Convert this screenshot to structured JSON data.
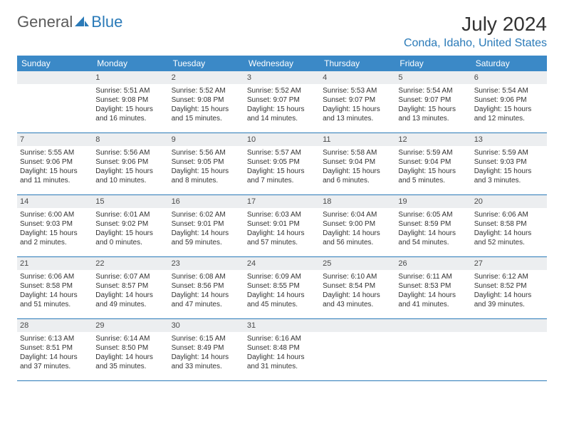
{
  "logo": {
    "text1": "General",
    "text2": "Blue"
  },
  "header": {
    "month_year": "July 2024",
    "location": "Conda, Idaho, United States"
  },
  "colors": {
    "header_bg": "#3b89c7",
    "accent": "#2a7ab8",
    "daynum_bg": "#eceef0",
    "text": "#333333",
    "logo_gray": "#5a5a5a"
  },
  "day_headers": [
    "Sunday",
    "Monday",
    "Tuesday",
    "Wednesday",
    "Thursday",
    "Friday",
    "Saturday"
  ],
  "weeks": [
    [
      {
        "n": "",
        "sr": "",
        "ss": "",
        "dl": ""
      },
      {
        "n": "1",
        "sr": "Sunrise: 5:51 AM",
        "ss": "Sunset: 9:08 PM",
        "dl": "Daylight: 15 hours and 16 minutes."
      },
      {
        "n": "2",
        "sr": "Sunrise: 5:52 AM",
        "ss": "Sunset: 9:08 PM",
        "dl": "Daylight: 15 hours and 15 minutes."
      },
      {
        "n": "3",
        "sr": "Sunrise: 5:52 AM",
        "ss": "Sunset: 9:07 PM",
        "dl": "Daylight: 15 hours and 14 minutes."
      },
      {
        "n": "4",
        "sr": "Sunrise: 5:53 AM",
        "ss": "Sunset: 9:07 PM",
        "dl": "Daylight: 15 hours and 13 minutes."
      },
      {
        "n": "5",
        "sr": "Sunrise: 5:54 AM",
        "ss": "Sunset: 9:07 PM",
        "dl": "Daylight: 15 hours and 13 minutes."
      },
      {
        "n": "6",
        "sr": "Sunrise: 5:54 AM",
        "ss": "Sunset: 9:06 PM",
        "dl": "Daylight: 15 hours and 12 minutes."
      }
    ],
    [
      {
        "n": "7",
        "sr": "Sunrise: 5:55 AM",
        "ss": "Sunset: 9:06 PM",
        "dl": "Daylight: 15 hours and 11 minutes."
      },
      {
        "n": "8",
        "sr": "Sunrise: 5:56 AM",
        "ss": "Sunset: 9:06 PM",
        "dl": "Daylight: 15 hours and 10 minutes."
      },
      {
        "n": "9",
        "sr": "Sunrise: 5:56 AM",
        "ss": "Sunset: 9:05 PM",
        "dl": "Daylight: 15 hours and 8 minutes."
      },
      {
        "n": "10",
        "sr": "Sunrise: 5:57 AM",
        "ss": "Sunset: 9:05 PM",
        "dl": "Daylight: 15 hours and 7 minutes."
      },
      {
        "n": "11",
        "sr": "Sunrise: 5:58 AM",
        "ss": "Sunset: 9:04 PM",
        "dl": "Daylight: 15 hours and 6 minutes."
      },
      {
        "n": "12",
        "sr": "Sunrise: 5:59 AM",
        "ss": "Sunset: 9:04 PM",
        "dl": "Daylight: 15 hours and 5 minutes."
      },
      {
        "n": "13",
        "sr": "Sunrise: 5:59 AM",
        "ss": "Sunset: 9:03 PM",
        "dl": "Daylight: 15 hours and 3 minutes."
      }
    ],
    [
      {
        "n": "14",
        "sr": "Sunrise: 6:00 AM",
        "ss": "Sunset: 9:03 PM",
        "dl": "Daylight: 15 hours and 2 minutes."
      },
      {
        "n": "15",
        "sr": "Sunrise: 6:01 AM",
        "ss": "Sunset: 9:02 PM",
        "dl": "Daylight: 15 hours and 0 minutes."
      },
      {
        "n": "16",
        "sr": "Sunrise: 6:02 AM",
        "ss": "Sunset: 9:01 PM",
        "dl": "Daylight: 14 hours and 59 minutes."
      },
      {
        "n": "17",
        "sr": "Sunrise: 6:03 AM",
        "ss": "Sunset: 9:01 PM",
        "dl": "Daylight: 14 hours and 57 minutes."
      },
      {
        "n": "18",
        "sr": "Sunrise: 6:04 AM",
        "ss": "Sunset: 9:00 PM",
        "dl": "Daylight: 14 hours and 56 minutes."
      },
      {
        "n": "19",
        "sr": "Sunrise: 6:05 AM",
        "ss": "Sunset: 8:59 PM",
        "dl": "Daylight: 14 hours and 54 minutes."
      },
      {
        "n": "20",
        "sr": "Sunrise: 6:06 AM",
        "ss": "Sunset: 8:58 PM",
        "dl": "Daylight: 14 hours and 52 minutes."
      }
    ],
    [
      {
        "n": "21",
        "sr": "Sunrise: 6:06 AM",
        "ss": "Sunset: 8:58 PM",
        "dl": "Daylight: 14 hours and 51 minutes."
      },
      {
        "n": "22",
        "sr": "Sunrise: 6:07 AM",
        "ss": "Sunset: 8:57 PM",
        "dl": "Daylight: 14 hours and 49 minutes."
      },
      {
        "n": "23",
        "sr": "Sunrise: 6:08 AM",
        "ss": "Sunset: 8:56 PM",
        "dl": "Daylight: 14 hours and 47 minutes."
      },
      {
        "n": "24",
        "sr": "Sunrise: 6:09 AM",
        "ss": "Sunset: 8:55 PM",
        "dl": "Daylight: 14 hours and 45 minutes."
      },
      {
        "n": "25",
        "sr": "Sunrise: 6:10 AM",
        "ss": "Sunset: 8:54 PM",
        "dl": "Daylight: 14 hours and 43 minutes."
      },
      {
        "n": "26",
        "sr": "Sunrise: 6:11 AM",
        "ss": "Sunset: 8:53 PM",
        "dl": "Daylight: 14 hours and 41 minutes."
      },
      {
        "n": "27",
        "sr": "Sunrise: 6:12 AM",
        "ss": "Sunset: 8:52 PM",
        "dl": "Daylight: 14 hours and 39 minutes."
      }
    ],
    [
      {
        "n": "28",
        "sr": "Sunrise: 6:13 AM",
        "ss": "Sunset: 8:51 PM",
        "dl": "Daylight: 14 hours and 37 minutes."
      },
      {
        "n": "29",
        "sr": "Sunrise: 6:14 AM",
        "ss": "Sunset: 8:50 PM",
        "dl": "Daylight: 14 hours and 35 minutes."
      },
      {
        "n": "30",
        "sr": "Sunrise: 6:15 AM",
        "ss": "Sunset: 8:49 PM",
        "dl": "Daylight: 14 hours and 33 minutes."
      },
      {
        "n": "31",
        "sr": "Sunrise: 6:16 AM",
        "ss": "Sunset: 8:48 PM",
        "dl": "Daylight: 14 hours and 31 minutes."
      },
      {
        "n": "",
        "sr": "",
        "ss": "",
        "dl": ""
      },
      {
        "n": "",
        "sr": "",
        "ss": "",
        "dl": ""
      },
      {
        "n": "",
        "sr": "",
        "ss": "",
        "dl": ""
      }
    ]
  ]
}
